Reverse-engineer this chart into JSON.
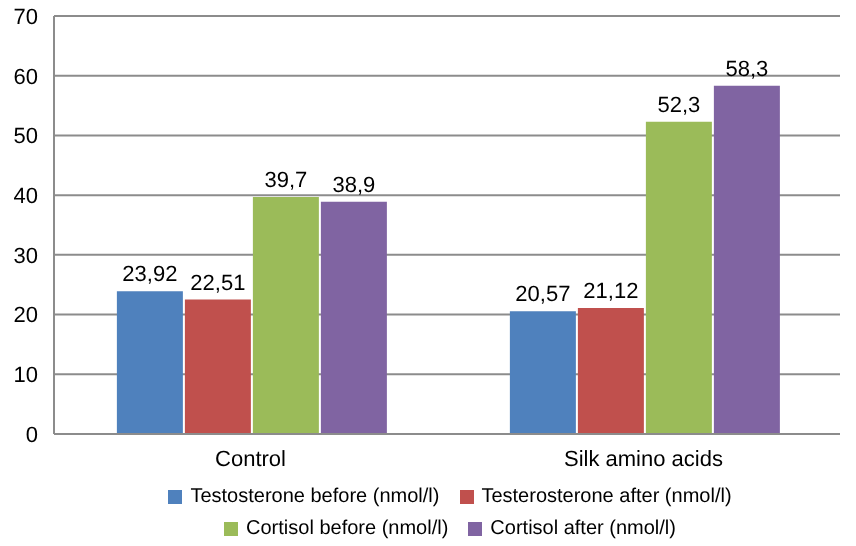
{
  "chart_data": {
    "type": "bar",
    "categories": [
      "Control",
      "Silk amino acids"
    ],
    "series": [
      {
        "name": "Testosterone before (nmol/l)",
        "color": "#4f81bd",
        "values": [
          23.92,
          20.57
        ],
        "value_labels": [
          "23,92",
          "20,57"
        ]
      },
      {
        "name": "Testerosterone after (nmol/l)",
        "color": "#c0504d",
        "values": [
          22.51,
          21.12
        ],
        "value_labels": [
          "22,51",
          "21,12"
        ]
      },
      {
        "name": "Cortisol before (nmol/l)",
        "color": "#9bbb59",
        "values": [
          39.7,
          52.3
        ],
        "value_labels": [
          "39,7",
          "52,3"
        ]
      },
      {
        "name": "Cortisol after (nmol/l)",
        "color": "#8064a2",
        "values": [
          38.9,
          58.3
        ],
        "value_labels": [
          "38,9",
          "58,3"
        ]
      }
    ],
    "ylim": [
      0,
      70
    ],
    "yticks": [
      0,
      10,
      20,
      30,
      40,
      50,
      60,
      70
    ],
    "grid": "y",
    "legend": "bottom"
  }
}
